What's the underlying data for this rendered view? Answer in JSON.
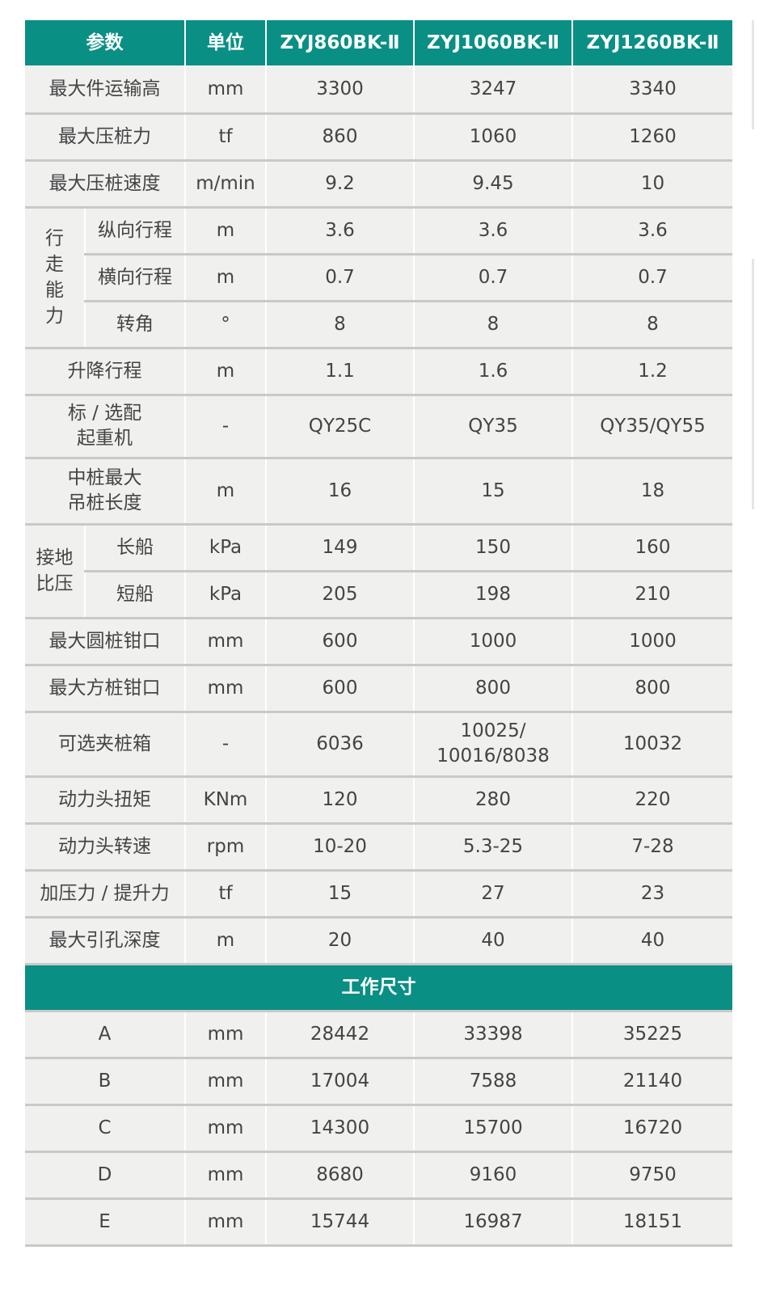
{
  "header": [
    "参数",
    "单位",
    "ZYJ860BK-Ⅱ",
    "ZYJ1060BK-Ⅱ",
    "ZYJ1260BK-Ⅱ"
  ],
  "rows": [
    {
      "param": "最大件运输高",
      "unit": "mm",
      "values": [
        "3300",
        "3247",
        "3340"
      ]
    },
    {
      "param": "最大压桩力",
      "unit": "tf",
      "values": [
        "860",
        "1060",
        "1260"
      ]
    },
    {
      "param": "最大压桩速度",
      "unit": "m/min",
      "values": [
        "9.2",
        "9.45",
        "10"
      ]
    },
    {
      "group": "行\n走\n能\n力",
      "param": "纵向行程",
      "unit": "m",
      "values": [
        "3.6",
        "3.6",
        "3.6"
      ]
    },
    {
      "param": "横向行程",
      "unit": "m",
      "values": [
        "0.7",
        "0.7",
        "0.7"
      ],
      "in_group": true
    },
    {
      "param": "转角",
      "unit": "°",
      "values": [
        "8",
        "8",
        "8"
      ],
      "in_group": true
    },
    {
      "param": "升降行程",
      "unit": "m",
      "values": [
        "1.1",
        "1.6",
        "1.2"
      ]
    },
    {
      "param": "标 / 选配\n起重机",
      "unit": "-",
      "values": [
        "QY25C",
        "QY35",
        "QY35/QY55"
      ],
      "tall": 78
    },
    {
      "param": "中桩最大\n吊桩长度",
      "unit": "m",
      "values": [
        "16",
        "15",
        "18"
      ],
      "tall": 82
    },
    {
      "group": "接地\n比压",
      "param": "长船",
      "unit": "kPa",
      "values": [
        "149",
        "150",
        "160"
      ]
    },
    {
      "param": "短船",
      "unit": "kPa",
      "values": [
        "205",
        "198",
        "210"
      ],
      "in_group": true
    },
    {
      "param": "最大圆桩钳口",
      "unit": "mm",
      "values": [
        "600",
        "1000",
        "1000"
      ]
    },
    {
      "param": "最大方桩钳口",
      "unit": "mm",
      "values": [
        "600",
        "800",
        "800"
      ]
    },
    {
      "param": "可选夹桩箱",
      "unit": "-",
      "values": [
        "6036",
        "10025/\n10016/8038",
        "10032"
      ],
      "tall": 80
    },
    {
      "param": "动力头扭矩",
      "unit": "KNm",
      "values": [
        "120",
        "280",
        "220"
      ]
    },
    {
      "param": "动力头转速",
      "unit": "rpm",
      "values": [
        "10-20",
        "5.3-25",
        "7-28"
      ]
    },
    {
      "param": "加压力 / 提升力",
      "unit": "tf",
      "values": [
        "15",
        "27",
        "23"
      ]
    },
    {
      "param": "最大引孔深度",
      "unit": "m",
      "values": [
        "20",
        "40",
        "40"
      ]
    }
  ],
  "section_title": "工作尺寸",
  "dimensions": [
    {
      "param": "A",
      "unit": "mm",
      "values": [
        "28442",
        "33398",
        "35225"
      ]
    },
    {
      "param": "B",
      "unit": "mm",
      "values": [
        "17004",
        "7588",
        "21140"
      ]
    },
    {
      "param": "C",
      "unit": "mm",
      "values": [
        "14300",
        "15700",
        "16720"
      ]
    },
    {
      "param": "D",
      "unit": "mm",
      "values": [
        "8680",
        "9160",
        "9750"
      ]
    },
    {
      "param": "E",
      "unit": "mm",
      "values": [
        "15744",
        "16987",
        "18151"
      ]
    }
  ],
  "colors": {
    "header_bg": "#0a8f84",
    "cell_bg": "#f0f0ef",
    "divider": "#c9c9c9"
  }
}
